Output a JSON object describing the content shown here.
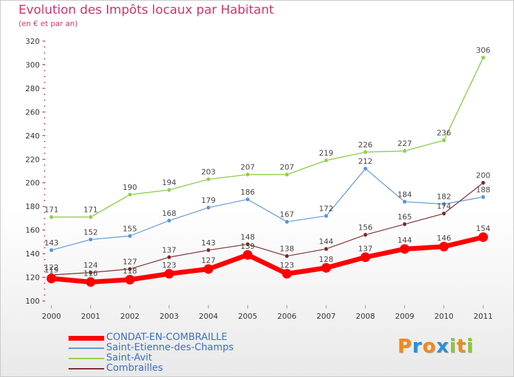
{
  "header": {
    "title": "Evolution des Impôts locaux par Habitant",
    "subtitle": "(en € et par an)"
  },
  "brand": {
    "logo_letters": [
      "P",
      "r",
      "o",
      "x",
      "i",
      "t",
      "i"
    ],
    "logo_colors": [
      "#f08a1c",
      "#2d8fd8",
      "#f08a1c",
      "#2d8fd8",
      "#8cc63f",
      "#f08a1c",
      "#8cc63f"
    ]
  },
  "chart_data": {
    "type": "line",
    "x": [
      2000,
      2001,
      2002,
      2003,
      2004,
      2005,
      2006,
      2007,
      2008,
      2009,
      2010,
      2011
    ],
    "ylim": [
      100,
      320
    ],
    "yticks": [
      100,
      120,
      140,
      160,
      180,
      200,
      220,
      240,
      260,
      280,
      300,
      320
    ],
    "grid": false,
    "legend_position": "bottom-left",
    "series": [
      {
        "name": "Saint-Avit",
        "color": "#8fd14f",
        "stroke": 1.5,
        "marker": 3,
        "values": [
          171,
          171,
          190,
          194,
          203,
          207,
          207,
          219,
          226,
          227,
          236,
          306
        ]
      },
      {
        "name": "Saint-Etienne-des-Champs",
        "color": "#5a96d4",
        "stroke": 1.2,
        "marker": 3,
        "values": [
          143,
          152,
          155,
          168,
          179,
          186,
          167,
          172,
          212,
          184,
          182,
          188
        ]
      },
      {
        "name": "Combrailles",
        "color": "#7a2a2a",
        "stroke": 1.2,
        "marker": 3,
        "values": [
          122,
          124,
          127,
          137,
          143,
          148,
          138,
          144,
          156,
          165,
          174,
          200
        ]
      },
      {
        "name": "CONDAT-EN-COMBRAILLE",
        "color": "#ff0000",
        "stroke": 7,
        "marker": 7,
        "values": [
          119,
          116,
          118,
          123,
          127,
          139,
          123,
          128,
          137,
          144,
          146,
          154
        ]
      }
    ],
    "legend_order": [
      "CONDAT-EN-COMBRAILLE",
      "Saint-Etienne-des-Champs",
      "Saint-Avit",
      "Combrailles"
    ]
  }
}
